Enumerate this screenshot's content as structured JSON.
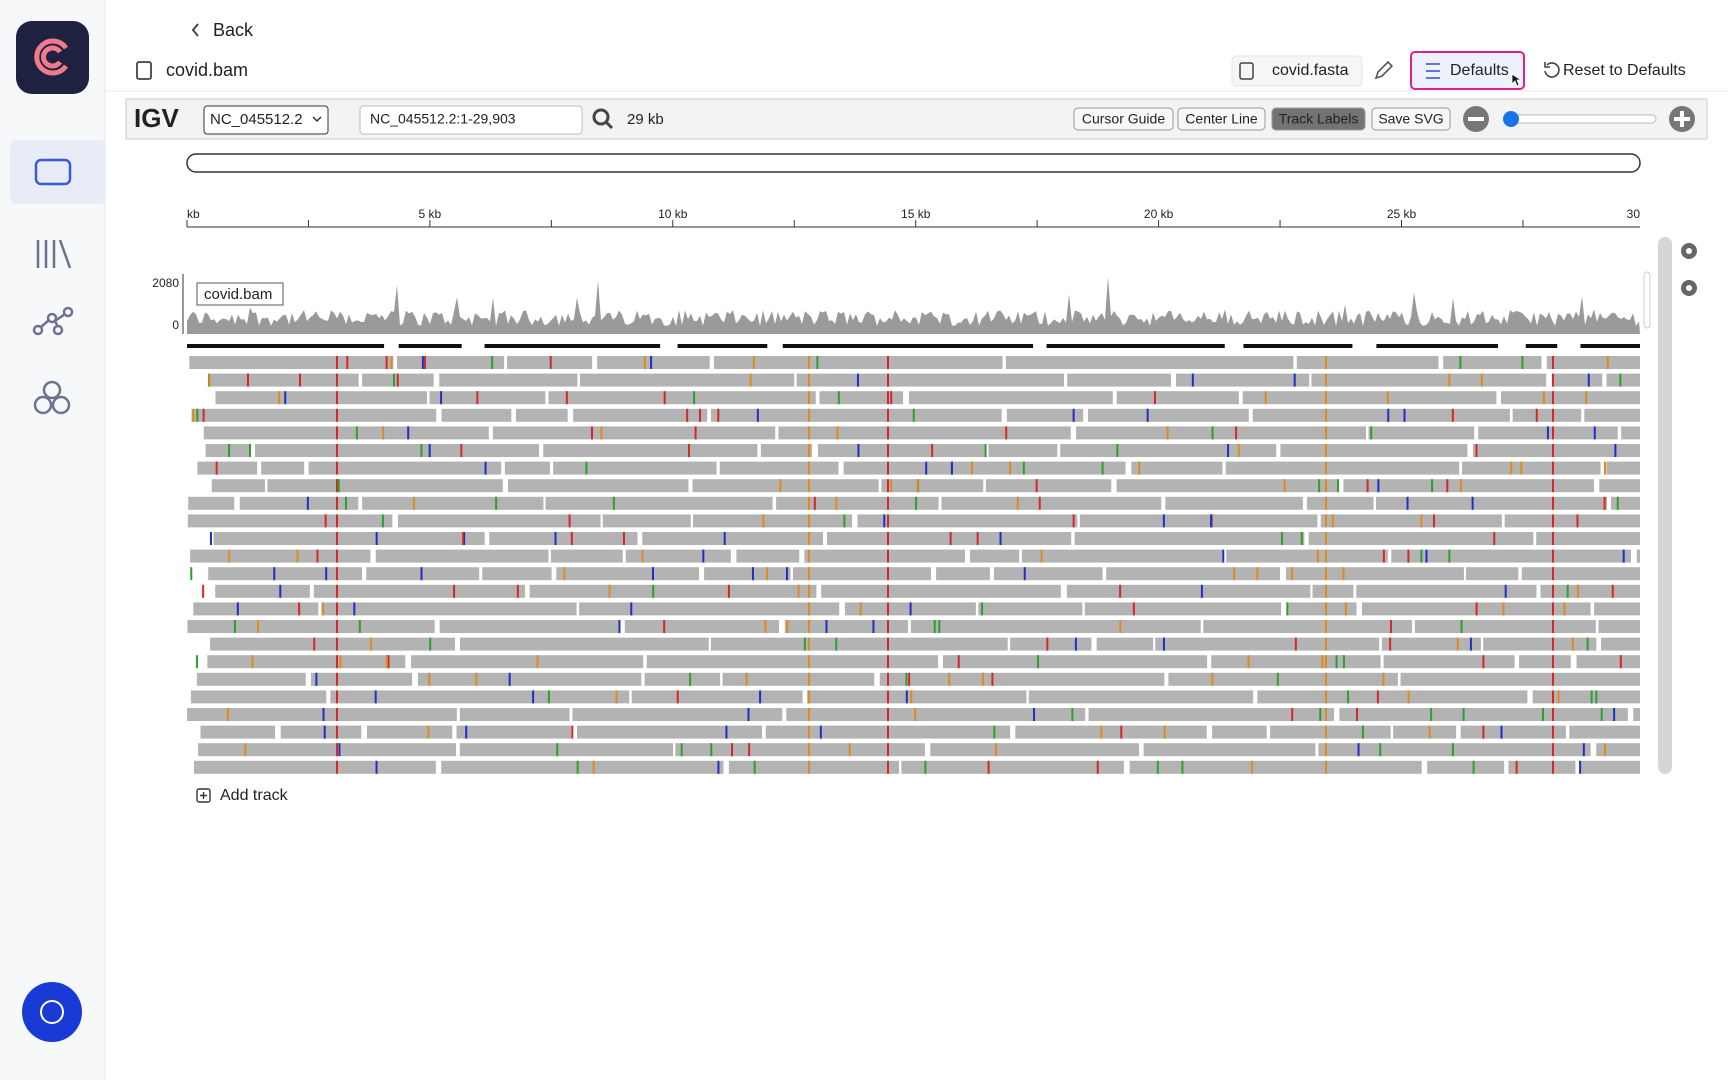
{
  "nav": {
    "back": "Back",
    "file": "covid.bam"
  },
  "toolbar": {
    "reference": "covid.fasta",
    "defaults": "Defaults",
    "reset": "Reset to Defaults"
  },
  "igv": {
    "logo": "IGV",
    "chromosome": "NC_045512.2",
    "locus": "NC_045512.2:1-29,903",
    "width": "29 kb",
    "buttons": [
      "Cursor Guide",
      "Center Line",
      "Track Labels",
      "Save SVG"
    ],
    "ruler": [
      "kb",
      "5 kb",
      "10 kb",
      "15 kb",
      "20 kb",
      "25 kb",
      "30"
    ],
    "coverage_max": "2080",
    "coverage_min": "0",
    "track": "covid.bam",
    "add_track": "Add track"
  }
}
